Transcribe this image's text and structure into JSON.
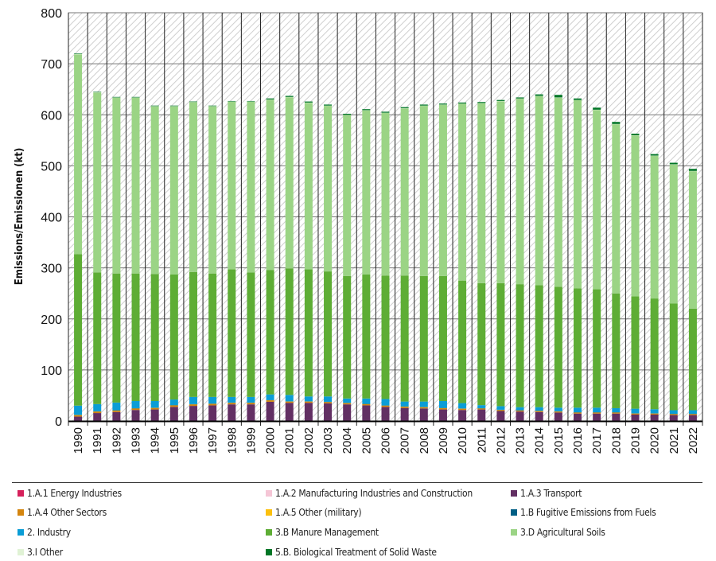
{
  "chart_data": {
    "type": "bar",
    "stacked": true,
    "title": "",
    "xlabel": "",
    "ylabel": "Emissions/Emissionen (kt)",
    "ylim": [
      0,
      800
    ],
    "yticks": [
      0,
      100,
      200,
      300,
      400,
      500,
      600,
      700,
      800
    ],
    "grid": true,
    "legend_position": "bottom",
    "categories": [
      "1990",
      "1991",
      "1992",
      "1993",
      "1994",
      "1995",
      "1996",
      "1997",
      "1998",
      "1999",
      "2000",
      "2001",
      "2002",
      "2003",
      "2004",
      "2005",
      "2006",
      "2007",
      "2008",
      "2009",
      "2010",
      "2011",
      "2012",
      "2013",
      "2014",
      "2015",
      "2016",
      "2017",
      "2018",
      "2019",
      "2020",
      "2021",
      "2022"
    ],
    "series": [
      {
        "name": "1.A.1 Energy Industries",
        "color": "#d6215b",
        "values": [
          0.3,
          0.3,
          0.3,
          0.3,
          0.3,
          0.3,
          0.3,
          0.3,
          0.3,
          0.3,
          0.3,
          0.3,
          0.3,
          0.3,
          0.3,
          0.3,
          0.3,
          0.3,
          0.3,
          0.3,
          0.3,
          0.3,
          0.3,
          0.3,
          0.3,
          0.3,
          0.3,
          0.3,
          0.3,
          0.3,
          0.3,
          0.3,
          0.3
        ]
      },
      {
        "name": "1.A.2 Manufacturing Industries and Construction",
        "color": "#f5c6d6",
        "values": [
          0.2,
          0.2,
          0.2,
          0.2,
          0.2,
          0.2,
          0.2,
          0.2,
          0.2,
          0.2,
          0.2,
          0.2,
          0.2,
          0.2,
          0.2,
          0.2,
          0.2,
          0.2,
          0.2,
          0.2,
          0.2,
          0.2,
          0.2,
          0.2,
          0.2,
          0.2,
          0.2,
          0.2,
          0.2,
          0.2,
          0.2,
          0.2,
          0.2
        ]
      },
      {
        "name": "1.A.3 Transport",
        "color": "#622f63",
        "values": [
          8,
          15,
          17,
          21,
          22,
          27,
          29,
          30,
          32,
          32,
          37,
          35,
          35,
          34,
          32,
          30,
          27,
          25,
          24,
          22,
          21,
          22,
          19,
          18,
          17,
          16,
          14,
          14,
          14,
          12,
          12,
          11,
          11
        ]
      },
      {
        "name": "1.A.4 Other Sectors",
        "color": "#d4850e",
        "values": [
          3,
          3,
          3,
          3,
          3,
          3,
          3,
          3,
          3,
          3,
          3,
          2.5,
          2.5,
          2.5,
          2.5,
          2.5,
          2.5,
          2.5,
          2.5,
          2.5,
          2.5,
          2,
          2,
          2,
          2,
          2,
          2,
          2,
          2,
          2,
          2,
          2,
          2
        ]
      },
      {
        "name": "1.A.5 Other (military)",
        "color": "#fcc00d",
        "values": [
          0.3,
          0.3,
          0.3,
          0.3,
          0.3,
          0.3,
          0.3,
          0.3,
          0.3,
          0.3,
          0.3,
          0.3,
          0.3,
          0.3,
          0.3,
          0.3,
          0.3,
          0.3,
          0.3,
          0.3,
          0.3,
          0.3,
          0.3,
          0.3,
          0.3,
          0.3,
          0.3,
          0.3,
          0.3,
          0.3,
          0.3,
          0.3,
          0.3
        ]
      },
      {
        "name": "1.B Fugitive Emissions from Fuels",
        "color": "#005f85",
        "values": [
          0.2,
          0.2,
          0.2,
          0.2,
          0.2,
          0.2,
          0.2,
          0.2,
          0.2,
          0.2,
          0.2,
          0.2,
          0.2,
          0.2,
          0.2,
          0.2,
          0.2,
          0.2,
          0.2,
          0.2,
          0.2,
          0.2,
          0.2,
          0.2,
          0.2,
          0.2,
          0.2,
          0.2,
          0.2,
          0.2,
          0.2,
          0.2,
          0.2
        ]
      },
      {
        "name": "2. Industry",
        "color": "#0a9dd6",
        "values": [
          18,
          14,
          15,
          14,
          13,
          11,
          14,
          13,
          11,
          11,
          11,
          12.5,
          9.5,
          10.5,
          8.5,
          10.5,
          12.5,
          9.5,
          10.5,
          13.5,
          10.5,
          6,
          7,
          6,
          7,
          7,
          9,
          9,
          8,
          9,
          8,
          7,
          7
        ]
      },
      {
        "name": "3.B Manure Management",
        "color": "#5ead35",
        "values": [
          297,
          258,
          253,
          250,
          249,
          245,
          245,
          242,
          250,
          244,
          244,
          248,
          249,
          245,
          240,
          243,
          242,
          247,
          246,
          245,
          240,
          239,
          241,
          241,
          239,
          237,
          234,
          232,
          225,
          220,
          217,
          209,
          199
        ]
      },
      {
        "name": "3.D Agricultural Soils",
        "color": "#9bd485",
        "values": [
          391.5,
          352.5,
          344.5,
          344.5,
          328.5,
          329.5,
          332.5,
          327.5,
          328.5,
          334.5,
          333.5,
          335.5,
          326.5,
          324.5,
          315.5,
          321.5,
          318.5,
          327.5,
          333.5,
          335.5,
          346.5,
          352.5,
          356.5,
          363.5,
          370.5,
          370.5,
          368.5,
          351.5,
          331.5,
          315.5,
          279.5,
          272.5,
          269.5
        ]
      },
      {
        "name": "3.I Other",
        "color": "#e0f2d5",
        "values": [
          0.5,
          0.5,
          0.5,
          0.5,
          0.5,
          0.5,
          0.5,
          0.5,
          0.5,
          0.5,
          0.5,
          0.5,
          0.5,
          0.5,
          0.5,
          0.5,
          0.5,
          0.5,
          0.5,
          0.5,
          0.5,
          0.5,
          0.5,
          0.5,
          0.5,
          0.5,
          0.5,
          0.5,
          0.5,
          0.5,
          0.5,
          0.5,
          0.5
        ]
      },
      {
        "name": "5.B. Biological Treatment of Solid Waste",
        "color": "#007626",
        "values": [
          1,
          1,
          1,
          1,
          1,
          1,
          1,
          1,
          1,
          1,
          2,
          2,
          2,
          2,
          2,
          2,
          2,
          2,
          2,
          2,
          2,
          2,
          2,
          2,
          3,
          5,
          3,
          4,
          4,
          3,
          3,
          3,
          4
        ]
      }
    ]
  }
}
